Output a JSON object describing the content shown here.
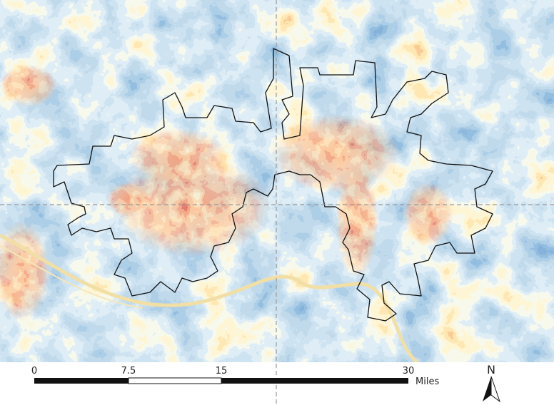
{
  "scale_bar": {
    "ticks": [
      0,
      7.5,
      15,
      30
    ],
    "unit": "Miles"
  },
  "north_arrow": {
    "label": "N"
  }
}
